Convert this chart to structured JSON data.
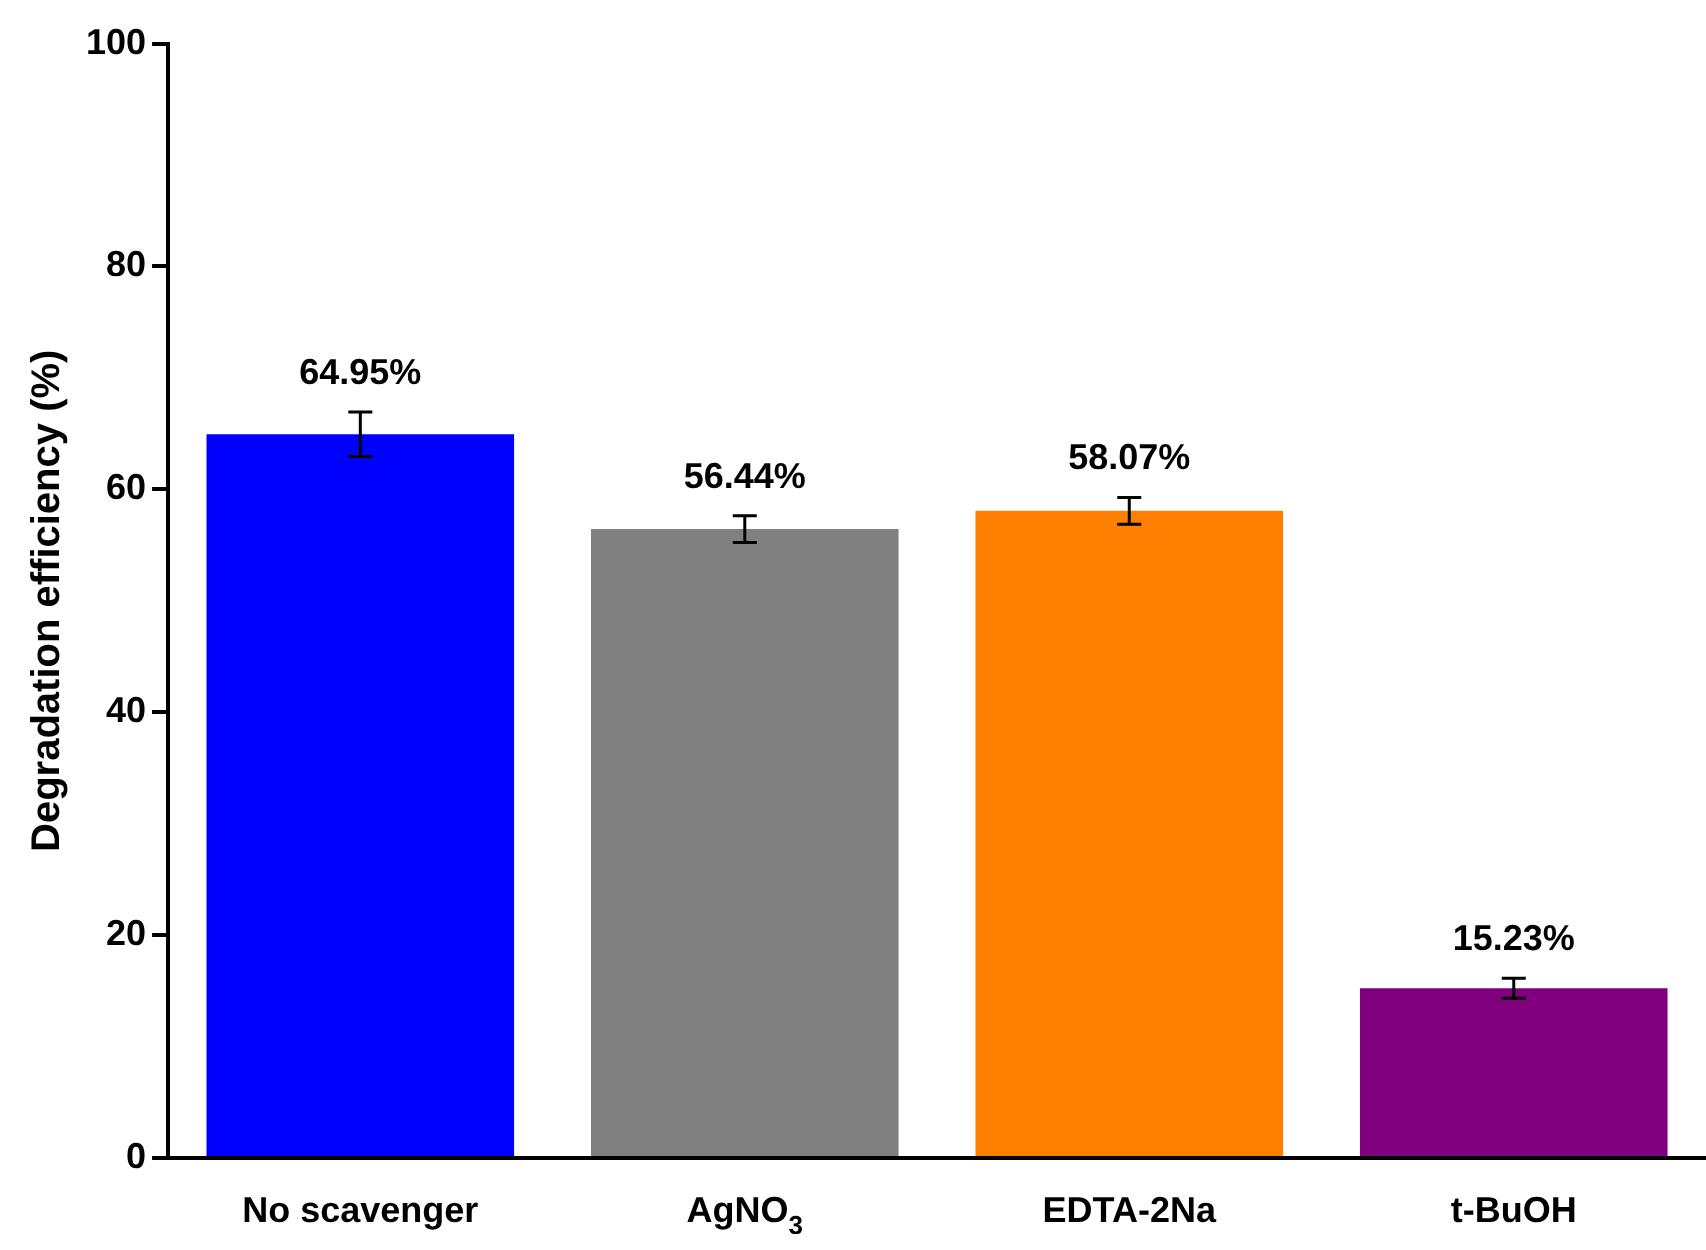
{
  "chart_data": {
    "type": "bar",
    "ylabel": "Degradation efficiency (%)",
    "categories": [
      "No scavenger",
      "AgNO$_{3}$",
      "EDTA-2Na",
      "t-BuOH"
    ],
    "values": [
      64.95,
      56.44,
      58.07,
      15.23
    ],
    "colors": [
      "#0000ff",
      "#808080",
      "#ff8000",
      "#800080"
    ],
    "errors": [
      2,
      1.2,
      1.2,
      0.9
    ],
    "value_labels": [
      "64.95%",
      "56.44%",
      "58.07%",
      "15.23%"
    ],
    "ylim": [
      0,
      100
    ],
    "yticks": [
      0,
      20,
      40,
      60,
      80,
      100
    ],
    "grid": false,
    "legend": false
  }
}
